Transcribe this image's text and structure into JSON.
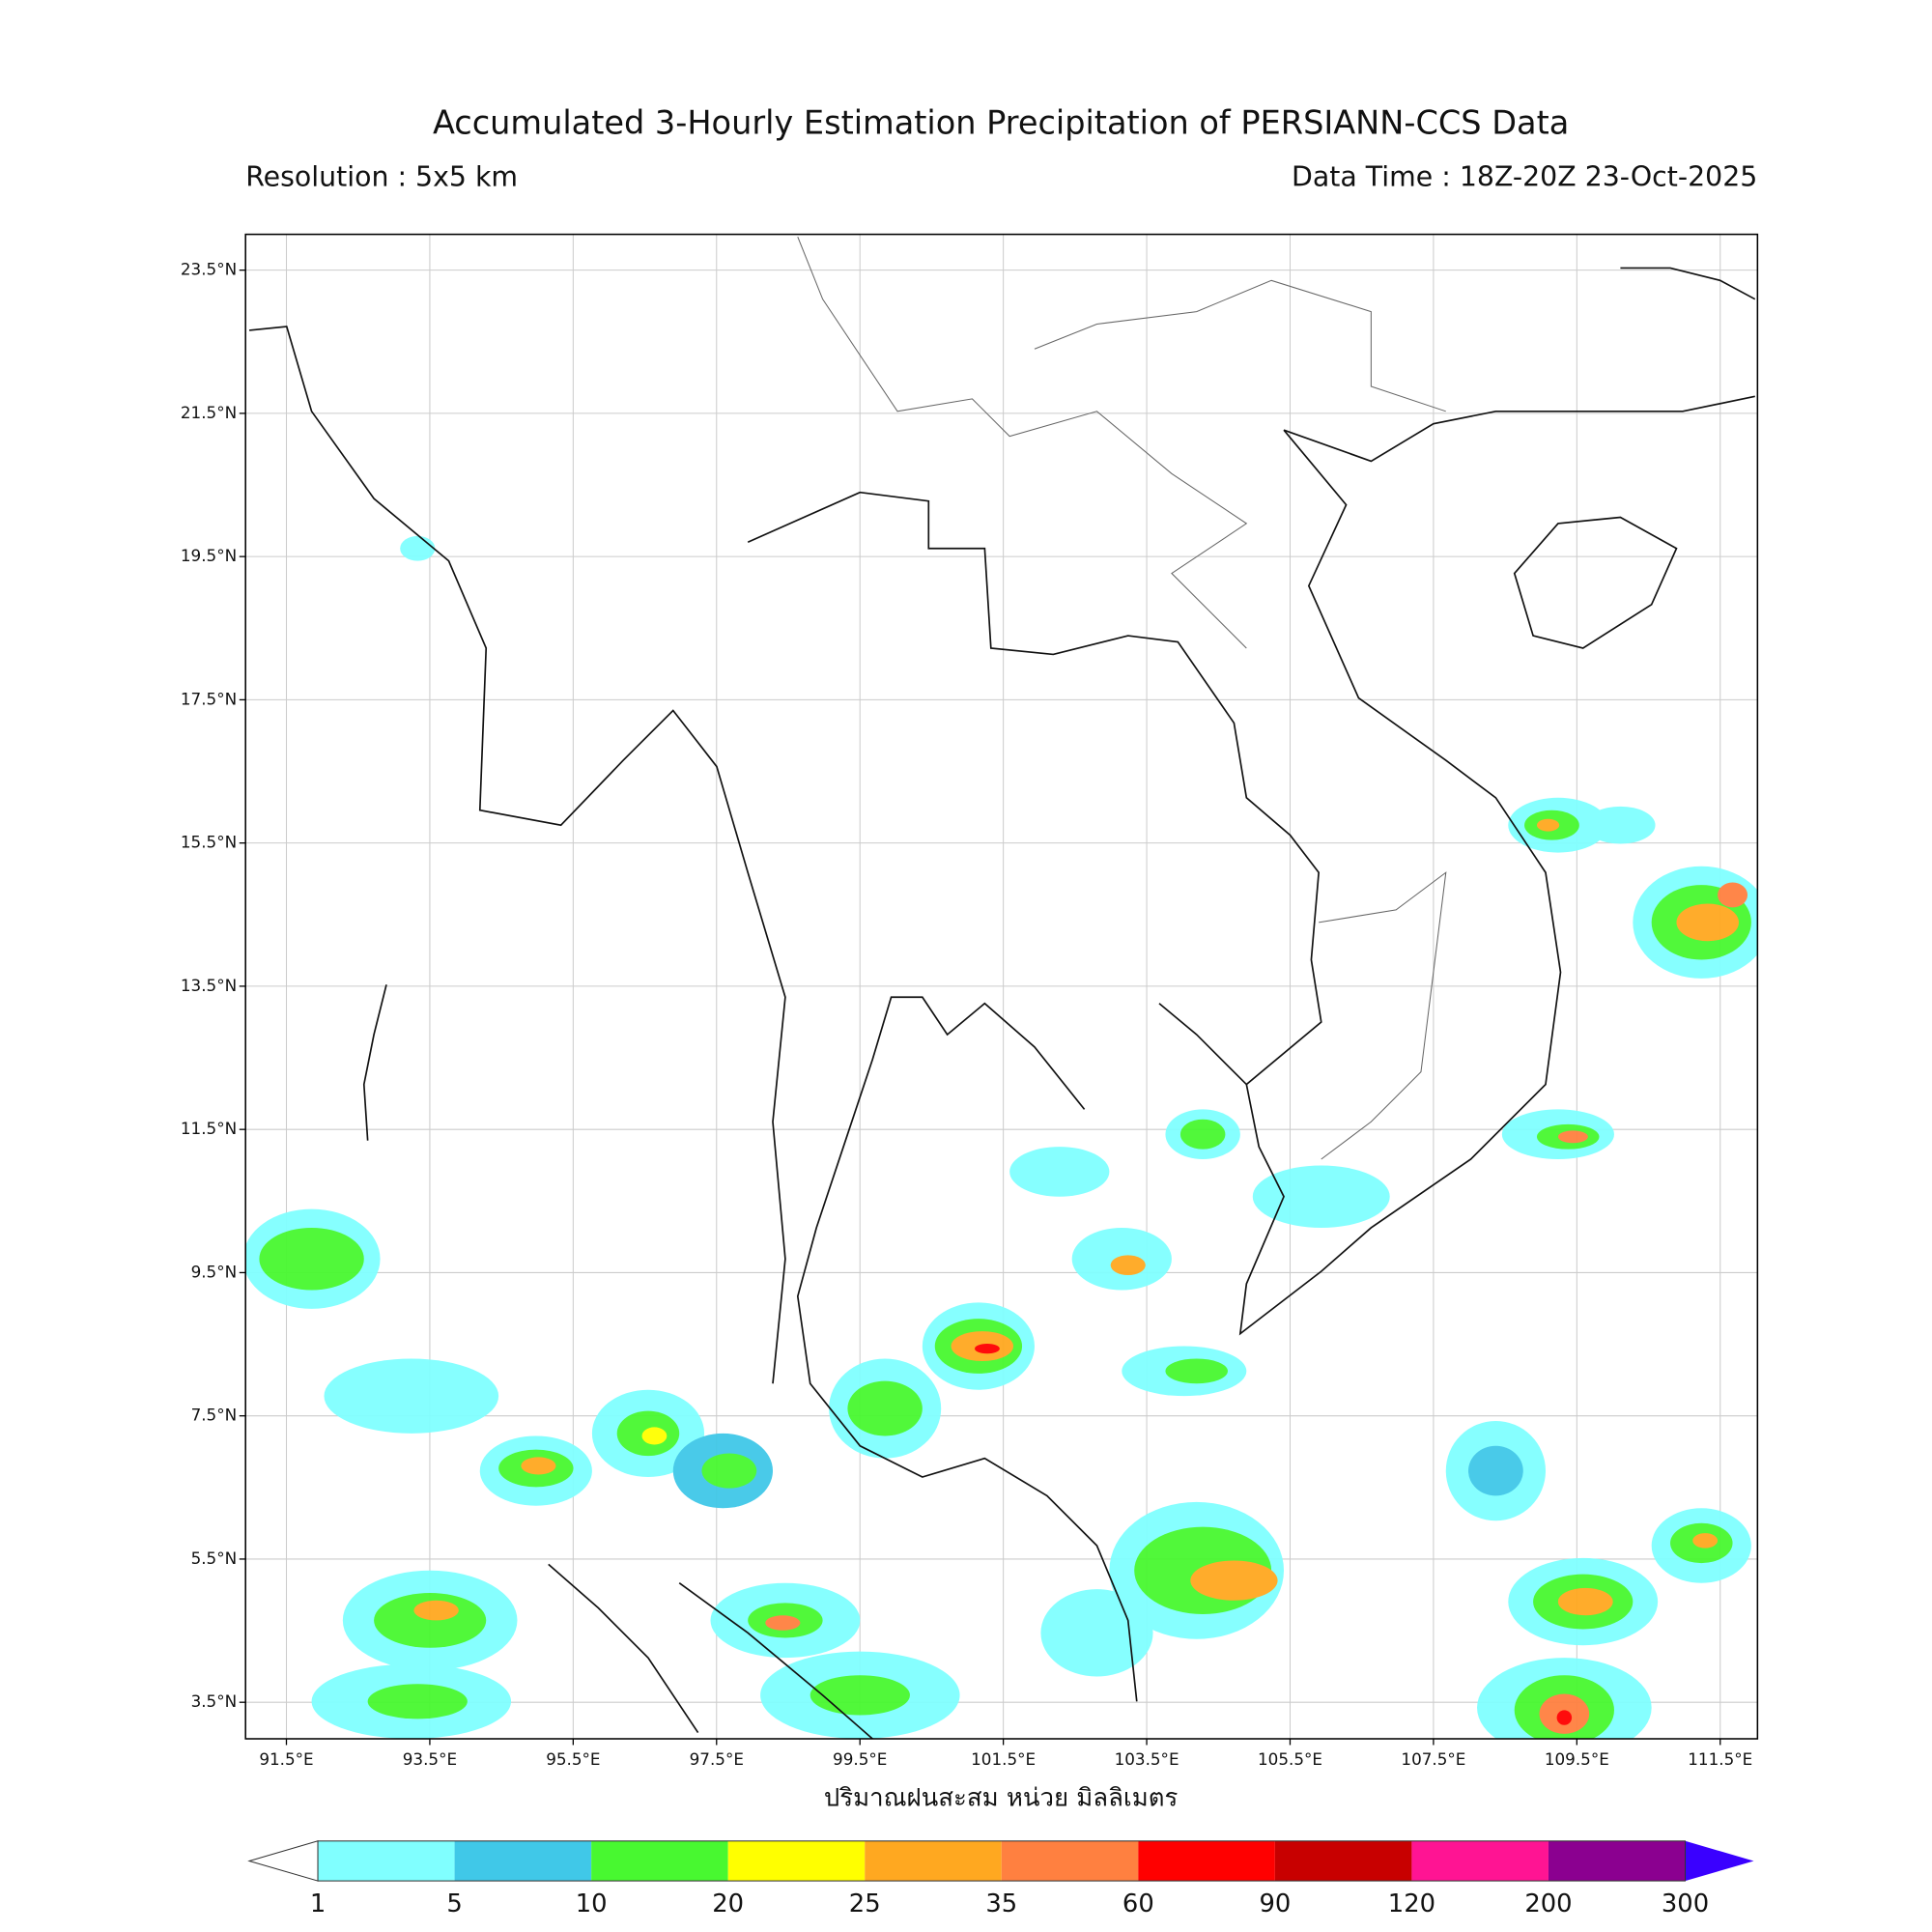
{
  "header": {
    "title": "Accumulated 3-Hourly Estimation Precipitation of PERSIANN-CCS Data",
    "resolution": "Resolution : 5x5 km",
    "data_time": "Data Time : 18Z-20Z 23-Oct-2025"
  },
  "map": {
    "lonlim": [
      90.93,
      112.02
    ],
    "latlim": [
      2.99,
      24.0
    ],
    "lon_ticks": [
      {
        "value": 91.5,
        "label": "91.5°E"
      },
      {
        "value": 93.5,
        "label": "93.5°E"
      },
      {
        "value": 95.5,
        "label": "95.5°E"
      },
      {
        "value": 97.5,
        "label": "97.5°E"
      },
      {
        "value": 99.5,
        "label": "99.5°E"
      },
      {
        "value": 101.5,
        "label": "101.5°E"
      },
      {
        "value": 103.5,
        "label": "103.5°E"
      },
      {
        "value": 105.5,
        "label": "105.5°E"
      },
      {
        "value": 107.5,
        "label": "107.5°E"
      },
      {
        "value": 109.5,
        "label": "109.5°E"
      },
      {
        "value": 111.5,
        "label": "111.5°E"
      }
    ],
    "lat_ticks": [
      {
        "value": 23.5,
        "label": "23.5°N"
      },
      {
        "value": 21.5,
        "label": "21.5°N"
      },
      {
        "value": 19.5,
        "label": "19.5°N"
      },
      {
        "value": 17.5,
        "label": "17.5°N"
      },
      {
        "value": 15.5,
        "label": "15.5°N"
      },
      {
        "value": 13.5,
        "label": "13.5°N"
      },
      {
        "value": 11.5,
        "label": "11.5°N"
      },
      {
        "value": 9.5,
        "label": "9.5°N"
      },
      {
        "value": 7.5,
        "label": "7.5°N"
      },
      {
        "value": 5.5,
        "label": "5.5°N"
      },
      {
        "value": 3.5,
        "label": "3.5°N"
      }
    ],
    "xlabel": "ปริมาณฝนสะสม หน่วย มิลลิเมตร"
  },
  "colorbar": {
    "levels": [
      1,
      5,
      10,
      20,
      25,
      35,
      60,
      90,
      120,
      200,
      300
    ],
    "colors": [
      "#80ffff",
      "#40c8e8",
      "#48f830",
      "#ffff00",
      "#ffa820",
      "#ff8040",
      "#ff0000",
      "#c80000",
      "#ff1493",
      "#8b0090"
    ],
    "under_color": "#ffffff",
    "over_color": "#3a00ff"
  }
}
